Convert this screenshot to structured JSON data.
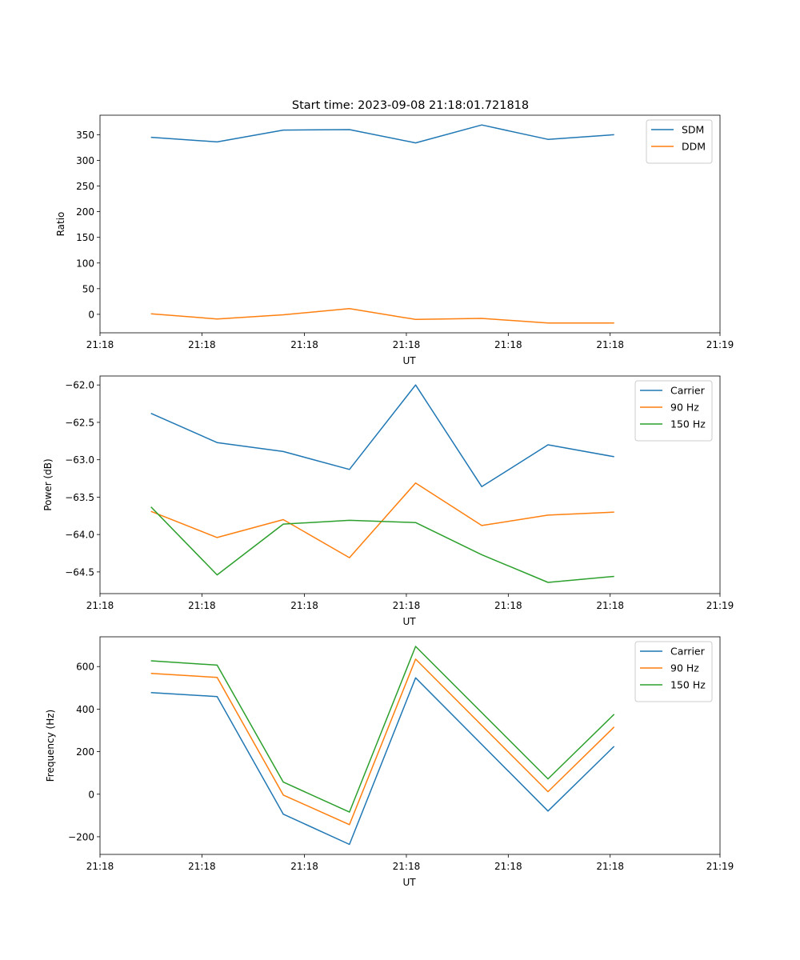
{
  "figure": {
    "title": "Start time: 2023-09-08 21:18:01.721818"
  },
  "colors": {
    "blue": "#1f77b4",
    "orange": "#ff7f0e",
    "green": "#2ca02c"
  },
  "chart_data": [
    {
      "type": "line",
      "title": "Start time: 2023-09-08 21:18:01.721818",
      "xlabel": "UT",
      "ylabel": "Ratio",
      "x": [
        0,
        1,
        2,
        3,
        4,
        5,
        6,
        7
      ],
      "xlim": [
        -0.77,
        8.6
      ],
      "ylim": [
        -36,
        388
      ],
      "x_ticks": [
        {
          "value": -0.77,
          "label": "21:18"
        },
        {
          "value": 0.77,
          "label": "21:18"
        },
        {
          "value": 2.32,
          "label": "21:18"
        },
        {
          "value": 3.86,
          "label": "21:18"
        },
        {
          "value": 5.4,
          "label": "21:18"
        },
        {
          "value": 6.94,
          "label": "21:18"
        },
        {
          "value": 8.6,
          "label": "21:19"
        }
      ],
      "y_ticks": [
        0,
        50,
        100,
        150,
        200,
        250,
        300,
        350
      ],
      "legend": "top-right",
      "series": [
        {
          "name": "SDM",
          "color": "#1f77b4",
          "values": [
            345,
            336,
            359,
            360,
            334,
            369,
            341,
            350
          ]
        },
        {
          "name": "DDM",
          "color": "#ff7f0e",
          "values": [
            1,
            -9,
            -1,
            11,
            -10,
            -8,
            -17,
            -17
          ]
        }
      ]
    },
    {
      "type": "line",
      "title": "",
      "xlabel": "UT",
      "ylabel": "Power (dB)",
      "x": [
        0,
        1,
        2,
        3,
        4,
        5,
        6,
        7
      ],
      "xlim": [
        -0.77,
        8.6
      ],
      "ylim": [
        -64.79,
        -61.88
      ],
      "x_ticks": [
        {
          "value": -0.77,
          "label": "21:18"
        },
        {
          "value": 0.77,
          "label": "21:18"
        },
        {
          "value": 2.32,
          "label": "21:18"
        },
        {
          "value": 3.86,
          "label": "21:18"
        },
        {
          "value": 5.4,
          "label": "21:18"
        },
        {
          "value": 6.94,
          "label": "21:18"
        },
        {
          "value": 8.6,
          "label": "21:19"
        }
      ],
      "y_ticks": [
        -64.5,
        -64.0,
        -63.5,
        -63.0,
        -62.5,
        -62.0
      ],
      "y_tick_labels": [
        "−64.5",
        "−64.0",
        "−63.5",
        "−63.0",
        "−62.5",
        "−62.0"
      ],
      "legend": "top-right",
      "series": [
        {
          "name": "Carrier",
          "color": "#1f77b4",
          "values": [
            -62.38,
            -62.77,
            -62.89,
            -63.13,
            -62.0,
            -63.36,
            -62.8,
            -62.96
          ]
        },
        {
          "name": "90 Hz",
          "color": "#ff7f0e",
          "values": [
            -63.69,
            -64.04,
            -63.8,
            -64.31,
            -63.31,
            -63.88,
            -63.74,
            -63.7
          ]
        },
        {
          "name": "150 Hz",
          "color": "#2ca02c",
          "values": [
            -63.63,
            -64.54,
            -63.86,
            -63.81,
            -63.84,
            -64.27,
            -64.64,
            -64.56
          ]
        }
      ]
    },
    {
      "type": "line",
      "title": "",
      "xlabel": "UT",
      "ylabel": "Frequency (Hz)",
      "x": [
        0,
        1,
        2,
        3,
        4,
        5,
        6,
        7
      ],
      "xlim": [
        -0.77,
        8.6
      ],
      "ylim": [
        -283,
        740
      ],
      "x_ticks": [
        {
          "value": -0.77,
          "label": "21:18"
        },
        {
          "value": 0.77,
          "label": "21:18"
        },
        {
          "value": 2.32,
          "label": "21:18"
        },
        {
          "value": 3.86,
          "label": "21:18"
        },
        {
          "value": 5.4,
          "label": "21:18"
        },
        {
          "value": 6.94,
          "label": "21:18"
        },
        {
          "value": 8.6,
          "label": "21:19"
        }
      ],
      "y_ticks": [
        -200,
        0,
        200,
        400,
        600
      ],
      "y_tick_labels": [
        "−200",
        "0",
        "200",
        "400",
        "600"
      ],
      "legend": "top-right",
      "series": [
        {
          "name": "Carrier",
          "color": "#1f77b4",
          "values": [
            478,
            459,
            -94,
            -236,
            547,
            null,
            -79,
            225
          ]
        },
        {
          "name": "90 Hz",
          "color": "#ff7f0e",
          "values": [
            568,
            549,
            -4,
            -143,
            635,
            null,
            12,
            316
          ]
        },
        {
          "name": "150 Hz",
          "color": "#2ca02c",
          "values": [
            627,
            607,
            57,
            -84,
            695,
            null,
            72,
            376
          ]
        }
      ]
    }
  ]
}
